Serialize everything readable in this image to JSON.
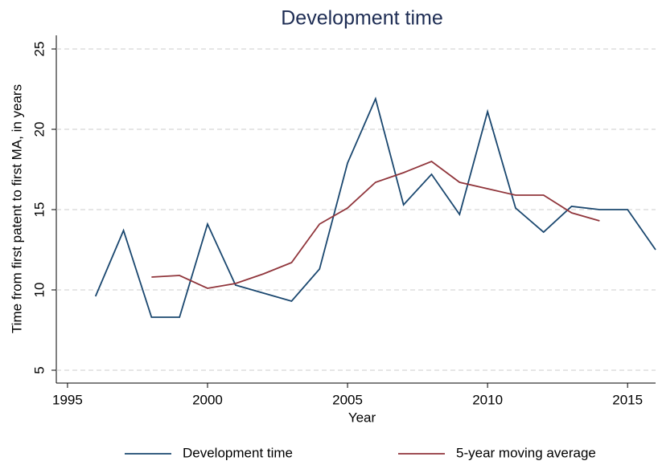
{
  "chart_data": {
    "type": "line",
    "title": "Development time",
    "x_label": "Year",
    "y_label": "Time from first patent to first MA, in years",
    "x": [
      1996,
      1997,
      1998,
      1999,
      2000,
      2001,
      2002,
      2003,
      2004,
      2005,
      2006,
      2007,
      2008,
      2009,
      2010,
      2011,
      2012,
      2013,
      2014,
      2015,
      2016
    ],
    "series": [
      {
        "name": "Development time",
        "color": "#1a476f",
        "values": [
          9.6,
          13.7,
          8.3,
          8.3,
          14.1,
          10.3,
          9.8,
          9.3,
          11.3,
          17.9,
          21.9,
          15.3,
          17.2,
          14.7,
          21.1,
          15.1,
          13.6,
          15.2,
          15.0,
          15.0,
          12.5
        ]
      },
      {
        "name": "5-year moving average",
        "color": "#90353b",
        "values": [
          null,
          null,
          10.8,
          10.9,
          10.1,
          10.4,
          11.0,
          11.7,
          14.1,
          15.1,
          16.7,
          17.3,
          18.0,
          16.7,
          16.3,
          15.9,
          15.9,
          14.8,
          14.3,
          null,
          null
        ]
      }
    ],
    "xlim": [
      1994.6,
      2016
    ],
    "xticks": [
      1995,
      2000,
      2005,
      2010,
      2015
    ],
    "ylim": [
      4.2,
      25.85
    ],
    "yticks": [
      5,
      10,
      15,
      20,
      25
    ],
    "grid": true,
    "legend": "bottom"
  }
}
